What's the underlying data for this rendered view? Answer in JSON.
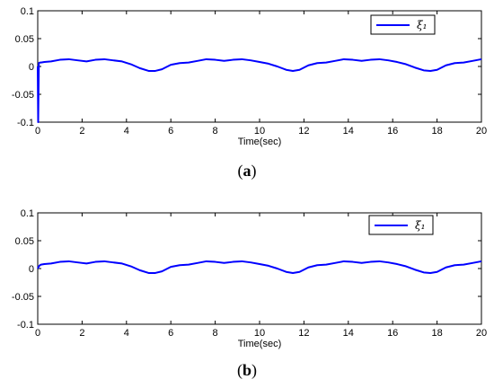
{
  "chart_data": [
    {
      "type": "line",
      "caption_letter": "a",
      "xlabel": "Time(sec)",
      "ylabel": "",
      "xlim": [
        0,
        20
      ],
      "ylim": [
        -0.1,
        0.1
      ],
      "xticks": [
        "0",
        "2",
        "4",
        "6",
        "8",
        "10",
        "12",
        "14",
        "16",
        "18",
        "20"
      ],
      "yticks": [
        "0.1",
        "0.05",
        "0",
        "-0.05",
        "-0.1"
      ],
      "grid": false,
      "legend_position": "top-right",
      "series": [
        {
          "name": "ξ₁",
          "color": "#0000ff",
          "x": [
            0,
            0.02,
            0.05,
            0.1,
            0.15,
            0.3,
            0.6,
            1.0,
            1.4,
            1.8,
            2.2,
            2.6,
            3.0,
            3.4,
            3.8,
            4.2,
            4.6,
            5.0,
            5.3,
            5.6,
            6.0,
            6.4,
            6.8,
            7.2,
            7.6,
            8.0,
            8.4,
            8.8,
            9.2,
            9.6,
            10.0,
            10.4,
            10.8,
            11.2,
            11.5,
            11.8,
            12.2,
            12.6,
            13.0,
            13.4,
            13.8,
            14.2,
            14.6,
            15.0,
            15.4,
            15.8,
            16.2,
            16.6,
            17.0,
            17.4,
            17.7,
            18.0,
            18.4,
            18.8,
            19.2,
            19.6,
            20.0
          ],
          "y": [
            0,
            -0.1,
            0.006,
            0.007,
            0.007,
            0.008,
            0.009,
            0.012,
            0.013,
            0.011,
            0.009,
            0.012,
            0.013,
            0.011,
            0.009,
            0.004,
            -0.003,
            -0.008,
            -0.008,
            -0.005,
            0.003,
            0.006,
            0.007,
            0.01,
            0.013,
            0.012,
            0.01,
            0.012,
            0.013,
            0.011,
            0.008,
            0.005,
            0.0,
            -0.006,
            -0.008,
            -0.006,
            0.002,
            0.006,
            0.007,
            0.01,
            0.013,
            0.012,
            0.01,
            0.012,
            0.013,
            0.011,
            0.008,
            0.004,
            -0.002,
            -0.007,
            -0.008,
            -0.006,
            0.002,
            0.006,
            0.007,
            0.01,
            0.013
          ]
        }
      ]
    },
    {
      "type": "line",
      "caption_letter": "b",
      "xlabel": "Time(sec)",
      "ylabel": "",
      "xlim": [
        0,
        20
      ],
      "ylim": [
        -0.1,
        0.1
      ],
      "xticks": [
        "0",
        "2",
        "4",
        "6",
        "8",
        "10",
        "12",
        "14",
        "16",
        "18",
        "20"
      ],
      "yticks": [
        "0.1",
        "0.05",
        "0",
        "-0.05",
        "-0.1"
      ],
      "grid": false,
      "legend_position": "top-right",
      "series": [
        {
          "name": "ξ₁",
          "color": "#0000ff",
          "x": [
            0,
            0.05,
            0.1,
            0.15,
            0.3,
            0.6,
            1.0,
            1.4,
            1.8,
            2.2,
            2.6,
            3.0,
            3.4,
            3.8,
            4.2,
            4.6,
            5.0,
            5.3,
            5.6,
            6.0,
            6.4,
            6.8,
            7.2,
            7.6,
            8.0,
            8.4,
            8.8,
            9.2,
            9.6,
            10.0,
            10.4,
            10.8,
            11.2,
            11.5,
            11.8,
            12.2,
            12.6,
            13.0,
            13.4,
            13.8,
            14.2,
            14.6,
            15.0,
            15.4,
            15.8,
            16.2,
            16.6,
            17.0,
            17.4,
            17.7,
            18.0,
            18.4,
            18.8,
            19.2,
            19.6,
            20.0
          ],
          "y": [
            0,
            0.004,
            0.006,
            0.007,
            0.008,
            0.009,
            0.012,
            0.013,
            0.011,
            0.009,
            0.012,
            0.013,
            0.011,
            0.009,
            0.004,
            -0.003,
            -0.008,
            -0.008,
            -0.005,
            0.003,
            0.006,
            0.007,
            0.01,
            0.013,
            0.012,
            0.01,
            0.012,
            0.013,
            0.011,
            0.008,
            0.005,
            0.0,
            -0.006,
            -0.008,
            -0.006,
            0.002,
            0.006,
            0.007,
            0.01,
            0.013,
            0.012,
            0.01,
            0.012,
            0.013,
            0.011,
            0.008,
            0.004,
            -0.002,
            -0.007,
            -0.008,
            -0.006,
            0.002,
            0.006,
            0.007,
            0.01,
            0.013
          ]
        }
      ]
    }
  ]
}
